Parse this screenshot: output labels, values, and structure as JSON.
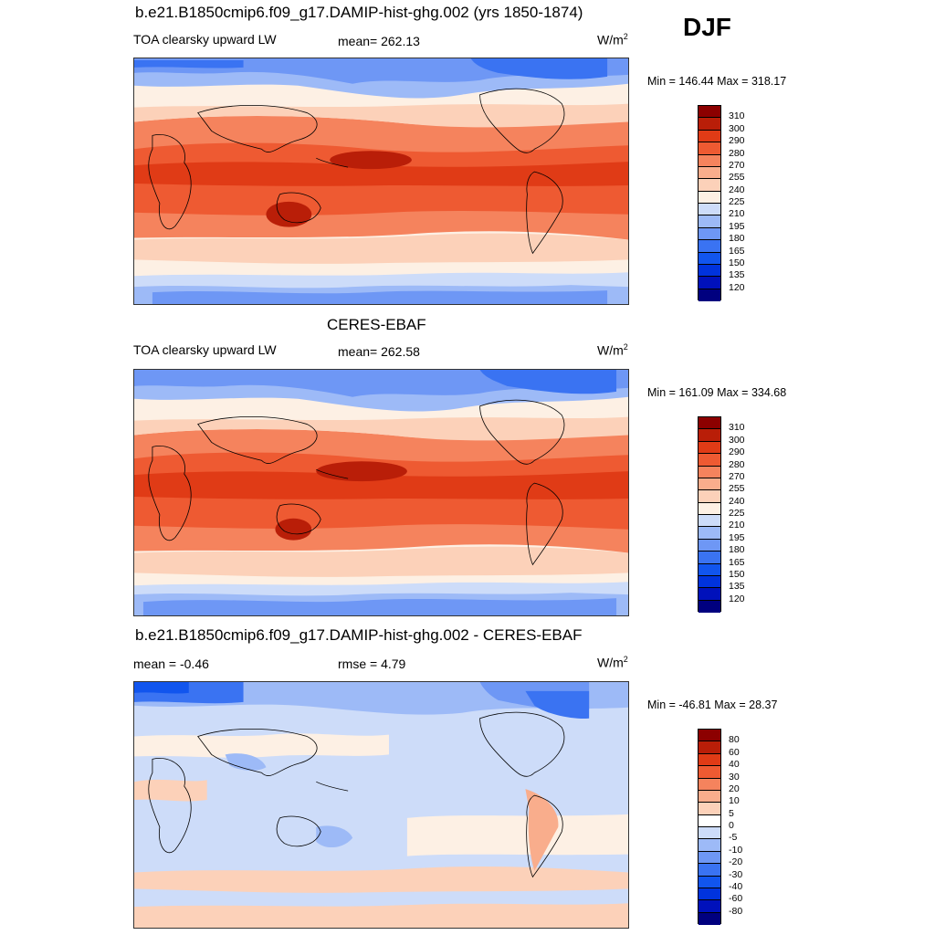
{
  "season": "DJF",
  "units_base": "W/m",
  "units_exp": "2",
  "palettes": {
    "abs": [
      "#00007f",
      "#0011bb",
      "#0033dd",
      "#1155ee",
      "#3a73f2",
      "#6e97f5",
      "#9dbaf7",
      "#cddcf9",
      "#fdf0e4",
      "#fcd1b9",
      "#f9ad8c",
      "#f5835d",
      "#ee5a32",
      "#e03b16",
      "#b91e08",
      "#8c0000"
    ],
    "diff": [
      "#00007f",
      "#0011bb",
      "#0033dd",
      "#1155ee",
      "#3a73f2",
      "#6e97f5",
      "#9dbaf7",
      "#cddcf9",
      "#ffffff",
      "#fcd1b9",
      "#f9ad8c",
      "#f5835d",
      "#ee5a32",
      "#e03b16",
      "#b91e08",
      "#8c0000"
    ]
  },
  "panels": [
    {
      "title": "b.e21.B1850cmip6.f09_g17.DAMIP-hist-ghg.002 (yrs 1850-1874)",
      "left_label": "TOA clearsky upward LW",
      "center_label": "mean= 262.13",
      "minmax": "Min = 146.44 Max = 318.17",
      "cb_labels": [
        "310",
        "300",
        "290",
        "280",
        "270",
        "255",
        "240",
        "225",
        "210",
        "195",
        "180",
        "165",
        "150",
        "135",
        "120"
      ]
    },
    {
      "title": "CERES-EBAF",
      "left_label": "TOA clearsky upward LW",
      "center_label": "mean= 262.58",
      "minmax": "Min = 161.09 Max = 334.68",
      "cb_labels": [
        "310",
        "300",
        "290",
        "280",
        "270",
        "255",
        "240",
        "225",
        "210",
        "195",
        "180",
        "165",
        "150",
        "135",
        "120"
      ]
    },
    {
      "title": "b.e21.B1850cmip6.f09_g17.DAMIP-hist-ghg.002 - CERES-EBAF",
      "left_label": "mean =  -0.46",
      "center_label": "rmse =   4.79",
      "minmax": "Min = -46.81 Max =  28.37",
      "cb_labels": [
        "80",
        "60",
        "40",
        "30",
        "20",
        "10",
        "5",
        "0",
        "-5",
        "-10",
        "-20",
        "-30",
        "-40",
        "-60",
        "-80"
      ]
    }
  ]
}
